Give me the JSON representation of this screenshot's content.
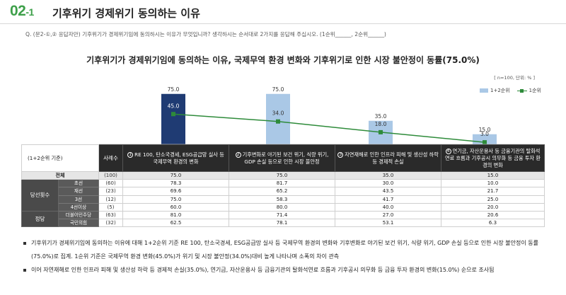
{
  "header": {
    "section_number": "02",
    "section_sub": "-1",
    "title": "기후위기 경제위기 동의하는 이유"
  },
  "question": "Q. (문2-①,② 응답자만) 기후위기가 경제위기임에 동의하시는 이유가 무엇입니까? 생각하시는 순서대로 2가지를 응답해 주십시오. (1순위______, 2순위______)",
  "chart_title": "기후위기가 경제위기임에 동의하는 이유, 국제무역 환경 변화와 기후위기로 인한 시장 불안정이 동률(75.0%)",
  "note_n": "[ n=100, 단위: % ]",
  "legend": {
    "bar": "1+2순위",
    "line": "1순위"
  },
  "colors": {
    "bar_highlight": "#1f3b73",
    "bar_normal": "#aac8e6",
    "line": "#2e8b3a",
    "accent": "#3ea04a"
  },
  "chart_data": {
    "type": "bar",
    "categories": [
      "① RE 100, 탄소국경세, ESG공급망 실사 등 국제무역 환경의 변화",
      "② 기후변화로 야기된 보건 위기, 식량 위기, GDP 손실 등으로 인한 시장 불안정",
      "③ 자연재해로 인한 인프라 피해 및 생산성 하락 등 경제적 손실",
      "④ 연기금, 자산운용사 등 금융기관의 탈화석연료 흐름과 기후공시 의무화 등 금융 투자 환경의 변화"
    ],
    "series": [
      {
        "name": "1+2순위",
        "values": [
          75.0,
          75.0,
          35.0,
          15.0
        ]
      },
      {
        "name": "1순위",
        "values": [
          45.0,
          34.0,
          18.0,
          3.0
        ]
      }
    ],
    "ylim": [
      0,
      80
    ]
  },
  "table": {
    "corner": "(1+2순위 기준)",
    "n_header": "사례수",
    "columns": [
      {
        "num": "1",
        "text": "RE 100, 탄소국경세, ESG공급망 실사 등 국제무역 환경의 변화"
      },
      {
        "num": "2",
        "text": "기후변화로 야기된 보건 위기, 식량 위기, GDP 손실 등으로 인한 시장 불안정"
      },
      {
        "num": "3",
        "text": "자연재해로 인한 인프라 피해 및 생산성 하락 등 경제적 손실"
      },
      {
        "num": "4",
        "text": "연기금, 자산운용사 등 금융기관의 탈화석연료 흐름과 기후공시 의무화 등 금융 투자 환경의 변화"
      }
    ],
    "total": {
      "label": "전체",
      "n": "(100)",
      "values": [
        "75.0",
        "75.0",
        "35.0",
        "15.0"
      ]
    },
    "groups": [
      {
        "label": "당선횟수",
        "rows": [
          {
            "label": "초선",
            "n": "(60)",
            "values": [
              "78.3",
              "81.7",
              "30.0",
              "10.0"
            ]
          },
          {
            "label": "재선",
            "n": "(23)",
            "values": [
              "69.6",
              "65.2",
              "43.5",
              "21.7"
            ]
          },
          {
            "label": "3선",
            "n": "(12)",
            "values": [
              "75.0",
              "58.3",
              "41.7",
              "25.0"
            ]
          },
          {
            "label": "4선이상",
            "n": "(5)",
            "values": [
              "60.0",
              "80.0",
              "40.0",
              "20.0"
            ]
          }
        ]
      },
      {
        "label": "정당",
        "rows": [
          {
            "label": "더불어민주당",
            "n": "(63)",
            "values": [
              "81.0",
              "71.4",
              "27.0",
              "20.6"
            ]
          },
          {
            "label": "국민의힘",
            "n": "(32)",
            "values": [
              "62.5",
              "78.1",
              "53.1",
              "6.3"
            ]
          }
        ]
      }
    ]
  },
  "notes": [
    "기후위기가 경제위기임에 동의하는 이유에 대해 1+2순위 기준 RE 100, 탄소국경세, ESG공급망 실사 등 국제무역 환경의 변화와 기후변화로 야기된 보건 위기, 식량 위기, GDP 손실 등으로 인한 시장 불안정이 동률(75.0%)로 집계. 1순위 기준은 국제무역 환경 변화(45.0%)가 위기 및 시장 불안정(34.0%)대비 높게 나타나며 소폭의 차이 관측",
    "이어 자연재해로 인한 인프라 피해 및 생산성 하락 등 경제적 손실(35.0%), 연기금, 자산운용사 등 금융기관의 탈화석연료 흐름과 기후공시 의무화 등 금융 투자 환경의 변화(15.0%) 순으로 조사됨"
  ]
}
